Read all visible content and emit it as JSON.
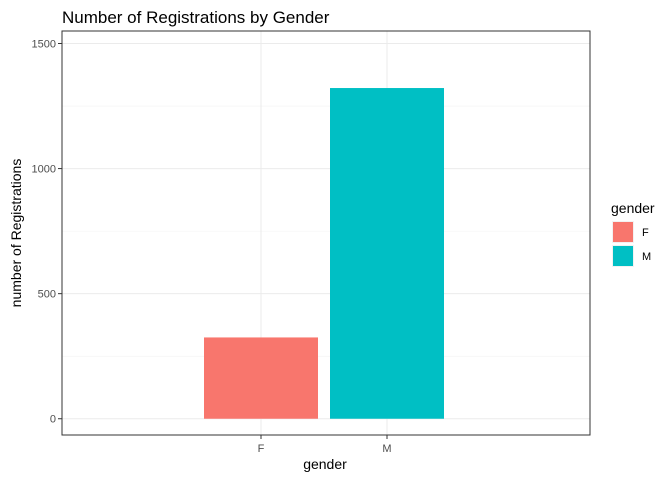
{
  "chart_data": {
    "type": "bar",
    "title": "Number of Registrations by Gender",
    "xlabel": "gender",
    "ylabel": "number of Registrations",
    "categories": [
      "F",
      "M"
    ],
    "values": [
      325,
      1322
    ],
    "ylim": [
      0,
      1550
    ],
    "yticks": [
      0,
      500,
      1000,
      1500
    ],
    "grid": true,
    "legend": {
      "title": "gender",
      "position": "right",
      "entries": [
        {
          "label": "F",
          "color": "#F8766D"
        },
        {
          "label": "M",
          "color": "#00BFC4"
        }
      ]
    },
    "colors": [
      "#F8766D",
      "#00BFC4"
    ]
  }
}
